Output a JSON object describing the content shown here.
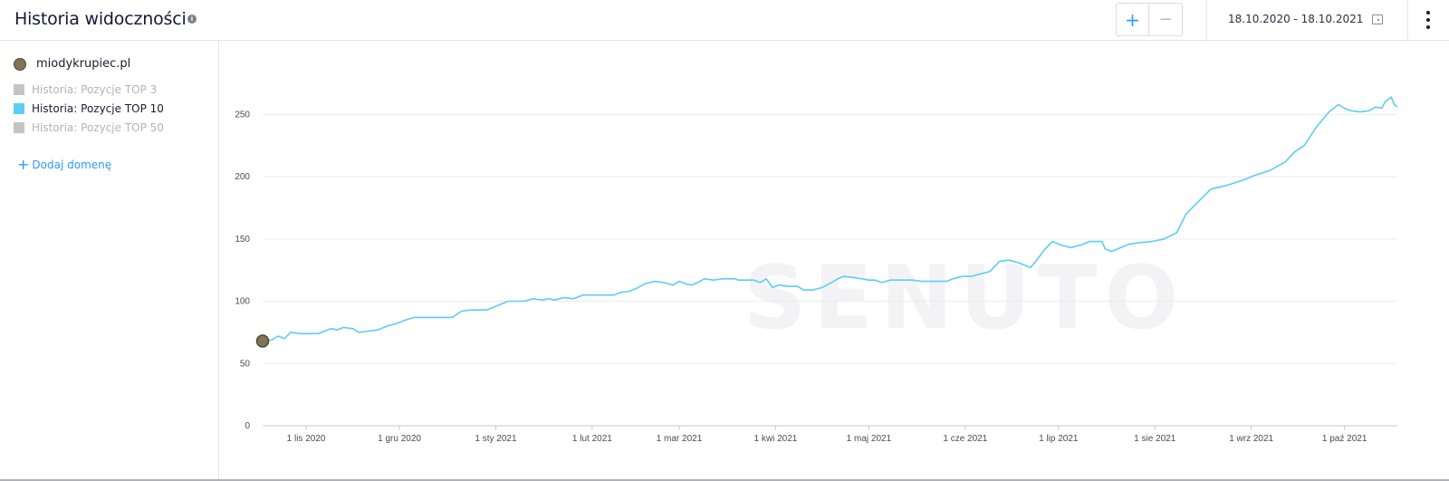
{
  "header": {
    "title": "Historia widoczności",
    "info_icon": "info-icon",
    "zoom_in_label": "+",
    "zoom_out_label": "−",
    "date_range": "18.10.2020 - 18.10.2021",
    "calendar_icon": "calendar-icon",
    "menu_icon": "kebab-menu-icon"
  },
  "sidebar": {
    "domain": "miodykrupiec.pl",
    "domain_color": "#807555",
    "legend": [
      {
        "label": "Historia: Pozycje TOP 3",
        "active": false,
        "color": "#c4c4c4"
      },
      {
        "label": "Historia: Pozycje TOP 10",
        "active": true,
        "color": "#5ccdf5"
      },
      {
        "label": "Historia: Pozycje TOP 50",
        "active": false,
        "color": "#c4c4c4"
      }
    ],
    "add_domain_label": "Dodaj domenę"
  },
  "watermark": "SENUTO",
  "chart_data": {
    "type": "line",
    "xlabel": "",
    "ylabel": "",
    "ylim": [
      0,
      275
    ],
    "yticks": [
      0,
      50,
      100,
      150,
      200,
      250
    ],
    "xlim": [
      "2020-10-18",
      "2021-10-18"
    ],
    "xticks": [
      {
        "date": "2020-11-01",
        "label": "1 lis 2020"
      },
      {
        "date": "2020-12-01",
        "label": "1 gru 2020"
      },
      {
        "date": "2021-01-01",
        "label": "1 sty 2021"
      },
      {
        "date": "2021-02-01",
        "label": "1 lut 2021"
      },
      {
        "date": "2021-03-01",
        "label": "1 mar 2021"
      },
      {
        "date": "2021-04-01",
        "label": "1 kwi 2021"
      },
      {
        "date": "2021-05-01",
        "label": "1 maj 2021"
      },
      {
        "date": "2021-06-01",
        "label": "1 cze 2021"
      },
      {
        "date": "2021-07-01",
        "label": "1 lip 2021"
      },
      {
        "date": "2021-08-01",
        "label": "1 sie 2021"
      },
      {
        "date": "2021-09-01",
        "label": "1 wrz 2021"
      },
      {
        "date": "2021-10-01",
        "label": "1 paź 2021"
      }
    ],
    "grid": true,
    "line_color": "#5ccdf5",
    "series": [
      {
        "name": "Historia: Pozycje TOP 10",
        "points": [
          [
            "2020-10-18",
            68
          ],
          [
            "2020-10-21",
            69
          ],
          [
            "2020-10-23",
            72
          ],
          [
            "2020-10-25",
            70
          ],
          [
            "2020-10-27",
            75
          ],
          [
            "2020-10-30",
            74
          ],
          [
            "2020-11-05",
            74
          ],
          [
            "2020-11-07",
            76
          ],
          [
            "2020-11-09",
            78
          ],
          [
            "2020-11-11",
            77
          ],
          [
            "2020-11-13",
            79
          ],
          [
            "2020-11-16",
            78
          ],
          [
            "2020-11-18",
            75
          ],
          [
            "2020-11-21",
            76
          ],
          [
            "2020-11-24",
            77
          ],
          [
            "2020-11-27",
            80
          ],
          [
            "2020-11-30",
            82
          ],
          [
            "2020-12-03",
            85
          ],
          [
            "2020-12-06",
            87
          ],
          [
            "2020-12-10",
            87
          ],
          [
            "2020-12-15",
            87
          ],
          [
            "2020-12-18",
            87
          ],
          [
            "2020-12-21",
            92
          ],
          [
            "2020-12-24",
            93
          ],
          [
            "2020-12-29",
            93
          ],
          [
            "2021-01-02",
            97
          ],
          [
            "2021-01-05",
            100
          ],
          [
            "2021-01-10",
            100
          ],
          [
            "2021-01-13",
            102
          ],
          [
            "2021-01-16",
            101
          ],
          [
            "2021-01-18",
            102
          ],
          [
            "2021-01-20",
            101
          ],
          [
            "2021-01-23",
            103
          ],
          [
            "2021-01-26",
            102
          ],
          [
            "2021-01-29",
            105
          ],
          [
            "2021-02-03",
            105
          ],
          [
            "2021-02-08",
            105
          ],
          [
            "2021-02-10",
            107
          ],
          [
            "2021-02-13",
            108
          ],
          [
            "2021-02-15",
            110
          ],
          [
            "2021-02-18",
            114
          ],
          [
            "2021-02-21",
            116
          ],
          [
            "2021-02-24",
            115
          ],
          [
            "2021-02-27",
            113
          ],
          [
            "2021-03-01",
            116
          ],
          [
            "2021-03-03",
            114
          ],
          [
            "2021-03-05",
            113
          ],
          [
            "2021-03-07",
            115
          ],
          [
            "2021-03-09",
            118
          ],
          [
            "2021-03-12",
            117
          ],
          [
            "2021-03-15",
            118
          ],
          [
            "2021-03-19",
            118
          ],
          [
            "2021-03-20",
            117
          ],
          [
            "2021-03-25",
            117
          ],
          [
            "2021-03-27",
            115
          ],
          [
            "2021-03-29",
            118
          ],
          [
            "2021-03-31",
            111
          ],
          [
            "2021-04-02",
            113
          ],
          [
            "2021-04-05",
            112
          ],
          [
            "2021-04-08",
            112
          ],
          [
            "2021-04-10",
            109
          ],
          [
            "2021-04-13",
            109
          ],
          [
            "2021-04-16",
            111
          ],
          [
            "2021-04-19",
            115
          ],
          [
            "2021-04-21",
            118
          ],
          [
            "2021-04-23",
            120
          ],
          [
            "2021-04-26",
            119
          ],
          [
            "2021-04-29",
            118
          ],
          [
            "2021-05-01",
            117
          ],
          [
            "2021-05-03",
            117
          ],
          [
            "2021-05-05",
            115
          ],
          [
            "2021-05-08",
            117
          ],
          [
            "2021-05-12",
            117
          ],
          [
            "2021-05-15",
            117
          ],
          [
            "2021-05-18",
            116
          ],
          [
            "2021-05-22",
            116
          ],
          [
            "2021-05-26",
            116
          ],
          [
            "2021-05-28",
            118
          ],
          [
            "2021-05-31",
            120
          ],
          [
            "2021-06-03",
            120
          ],
          [
            "2021-06-06",
            122
          ],
          [
            "2021-06-09",
            124
          ],
          [
            "2021-06-12",
            132
          ],
          [
            "2021-06-15",
            133
          ],
          [
            "2021-06-18",
            131
          ],
          [
            "2021-06-22",
            127
          ],
          [
            "2021-06-24",
            133
          ],
          [
            "2021-06-26",
            140
          ],
          [
            "2021-06-29",
            148
          ],
          [
            "2021-07-02",
            145
          ],
          [
            "2021-07-05",
            143
          ],
          [
            "2021-07-08",
            145
          ],
          [
            "2021-07-11",
            148
          ],
          [
            "2021-07-15",
            148
          ],
          [
            "2021-07-16",
            142
          ],
          [
            "2021-07-18",
            140
          ],
          [
            "2021-07-21",
            143
          ],
          [
            "2021-07-24",
            146
          ],
          [
            "2021-07-27",
            147
          ],
          [
            "2021-07-31",
            148
          ],
          [
            "2021-08-04",
            150
          ],
          [
            "2021-08-08",
            155
          ],
          [
            "2021-08-11",
            170
          ],
          [
            "2021-08-15",
            180
          ],
          [
            "2021-08-19",
            190
          ],
          [
            "2021-08-24",
            193
          ],
          [
            "2021-08-29",
            197
          ],
          [
            "2021-09-02",
            201
          ],
          [
            "2021-09-07",
            205
          ],
          [
            "2021-09-12",
            212
          ],
          [
            "2021-09-15",
            220
          ],
          [
            "2021-09-18",
            225
          ],
          [
            "2021-09-22",
            240
          ],
          [
            "2021-09-26",
            252
          ],
          [
            "2021-09-29",
            258
          ],
          [
            "2021-10-01",
            255
          ],
          [
            "2021-10-03",
            253
          ],
          [
            "2021-10-06",
            252
          ],
          [
            "2021-10-09",
            253
          ],
          [
            "2021-10-11",
            256
          ],
          [
            "2021-10-13",
            255
          ],
          [
            "2021-10-14",
            260
          ],
          [
            "2021-10-16",
            264
          ],
          [
            "2021-10-17",
            258
          ],
          [
            "2021-10-18",
            256
          ]
        ]
      }
    ]
  }
}
